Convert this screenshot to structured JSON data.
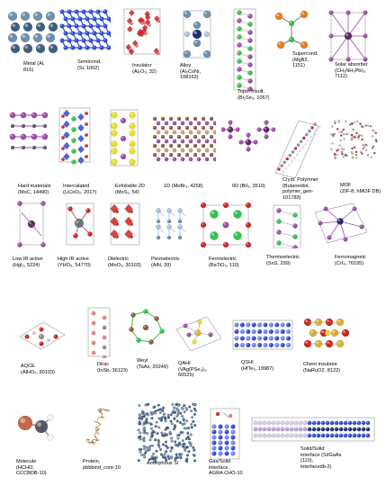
{
  "figure": {
    "background": "#ffffff",
    "panels": [
      {
        "id": "metal",
        "icon": "metal-lattice-icon",
        "title": "Metal (Al,",
        "sub": "816)"
      },
      {
        "id": "semicond",
        "icon": "semiconductor-lattice-icon",
        "title": "Semicond.",
        "sub": "(Si, 1002)"
      },
      {
        "id": "insulator",
        "icon": "insulator-crystal-icon",
        "title": "Insulator",
        "sub": "(Al₂O₃, 32)"
      },
      {
        "id": "alloy",
        "icon": "alloy-crystal-icon",
        "title": "Alloy",
        "sub": "(Al₂CoNi,",
        "sub2": "108163)"
      },
      {
        "id": "topo",
        "icon": "topological-insulator-icon",
        "title": "Topo. Insult.",
        "sub": "(Bi₂Se₃, 1067)"
      },
      {
        "id": "supercond",
        "icon": "superconductor-molecule-icon",
        "title": "Supercond.",
        "sub": "(MgB2,",
        "sub2": "1151)"
      },
      {
        "id": "solar",
        "icon": "solar-absorber-crystal-icon",
        "title": "Solar absorber",
        "sub": "(CH₃NH₃PbI₃,",
        "sub2": "7112)"
      },
      {
        "id": "hard",
        "icon": "hard-material-crystal-icon",
        "title": "Hard materials",
        "sub": "(MoC, 14490)"
      },
      {
        "id": "intercalated",
        "icon": "intercalated-crystal-icon",
        "title": "Intercalated",
        "sub": "(LiCoO₂, 2017)"
      },
      {
        "id": "exfoliable",
        "icon": "layered-2d-crystal-icon",
        "title": "Exfoliable 2D",
        "sub": "(MoS₂, 54)"
      },
      {
        "id": "oned",
        "icon": "one-d-chain-crystal-icon",
        "title": "1D (MoBr₃, 4258)"
      },
      {
        "id": "zerod",
        "icon": "zero-d-cluster-crystal-icon",
        "title": "0D (BiI₃, 3510)"
      },
      {
        "id": "polymer",
        "icon": "polymer-crystal-icon",
        "title": "Cryst. Polymner",
        "sub": "(Butanediol,",
        "sub2": "polymer_gen-",
        "sub3": "101783)"
      },
      {
        "id": "mof",
        "icon": "mof-framework-icon",
        "title": "MOF",
        "sub": "(ZIF-8, hMOF DB)"
      },
      {
        "id": "lowir",
        "icon": "low-ir-crystal-icon",
        "title": "Low IR active",
        "sub": "(HgI₂, 5224)"
      },
      {
        "id": "highir",
        "icon": "high-ir-crystal-icon",
        "title": "High IR active",
        "sub": "(YHO₃, 54770)"
      },
      {
        "id": "dielectric",
        "icon": "dielectric-crystal-icon",
        "title": "Dielectric",
        "sub": "(MoO₃, 30103)"
      },
      {
        "id": "piezo",
        "icon": "piezoelectric-crystal-icon",
        "title": "Piezoelectric",
        "sub": "(AlN, 39)"
      },
      {
        "id": "ferroelectric",
        "icon": "ferroelectric-crystal-icon",
        "title": "Ferroelectric",
        "sub": "(BaTiO₃, 110)"
      },
      {
        "id": "thermo",
        "icon": "thermoelectric-crystal-icon",
        "title": "Thermoelectric",
        "sub": "(SnS, 299)"
      },
      {
        "id": "ferromag",
        "icon": "ferromagnet-crystal-icon",
        "title": "Ferromagnetc",
        "sub": "(CrI₃, 76195)"
      },
      {
        "id": "aqce",
        "icon": "aqce-crystal-icon",
        "title": "AQCE",
        "sub": "(AlHO₂, 30103)"
      },
      {
        "id": "dirac",
        "icon": "dirac-crystal-icon",
        "title": "Dirac",
        "sub": "(InSb, 36123)"
      },
      {
        "id": "weyl",
        "icon": "weyl-crystal-icon",
        "title": "Weyl",
        "sub": "(TaAs, 20249)"
      },
      {
        "id": "qahi",
        "icon": "qahi-crystal-icon",
        "title": "QAHI",
        "sub": "(VAg(PSe₃)₂,",
        "sub2": "60525)"
      },
      {
        "id": "qshi",
        "icon": "qshi-crystal-icon",
        "title": "QSHI",
        "sub": "(HfTe₅, 19987)"
      },
      {
        "id": "chern",
        "icon": "chern-insulator-crystal-icon",
        "title": "Chern insulator",
        "sub": "(NaRuO2, 8122)"
      },
      {
        "id": "molecule",
        "icon": "formaldehyde-molecule-icon",
        "title": "Molecule",
        "sub": "(HCHO,",
        "sub2": "CCCBDB-10)"
      },
      {
        "id": "protein",
        "icon": "protein-structure-icon",
        "title": "Protein,",
        "sub": "pbbbind_core-10"
      },
      {
        "id": "amorphous",
        "icon": "amorphous-silicon-icon",
        "title": "Amorphous Si"
      },
      {
        "id": "gassolid",
        "icon": "gas-solid-interface-icon",
        "title": "Gas/Solid",
        "sub": "interface,",
        "sub2": "AGRA CHO-10"
      },
      {
        "id": "solidsolid",
        "icon": "solid-solid-interface-icon",
        "title": "Solid/Solid",
        "sub": "interface (Si/GaAs",
        "sub2": "(110),",
        "sub3": "interfacedb-2)"
      }
    ]
  }
}
